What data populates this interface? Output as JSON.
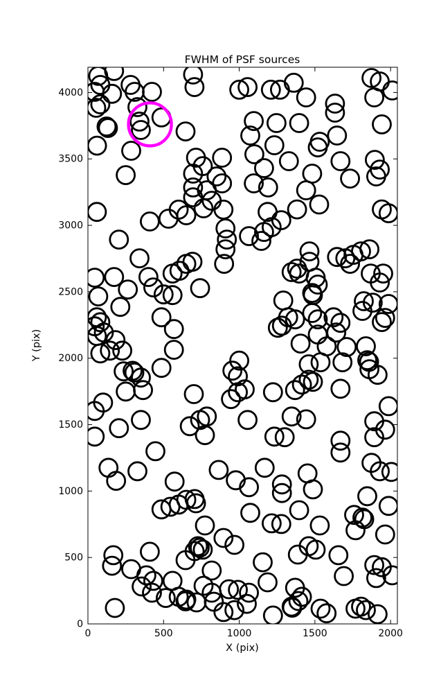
{
  "figure": {
    "background": "#ffffff"
  },
  "chart_data": {
    "type": "scatter",
    "title": "FWHM of PSF sources",
    "xlabel": "X (pix)",
    "ylabel": "Y (pix)",
    "xlim": [
      0,
      2045
    ],
    "ylim": [
      0,
      4190
    ],
    "xticks": [
      0,
      500,
      1000,
      1500,
      2000
    ],
    "yticks": [
      0,
      500,
      1000,
      1500,
      2000,
      2500,
      3000,
      3500,
      4000
    ],
    "grid": false,
    "legend": null,
    "marker": {
      "shape": "circle",
      "fill": "none",
      "edge_color": "#000000",
      "radius_px": 13,
      "stroke_px": 2.8
    },
    "highlight": {
      "x": 410,
      "y": 3760,
      "color": "#ff00ff",
      "radius_px": 31,
      "stroke_px": 4.4
    },
    "points": [
      [
        68,
        4125
      ],
      [
        173,
        4162
      ],
      [
        82,
        4057
      ],
      [
        45,
        4005
      ],
      [
        159,
        3990
      ],
      [
        82,
        3911
      ],
      [
        55,
        3885
      ],
      [
        282,
        4057
      ],
      [
        309,
        4005
      ],
      [
        423,
        4005
      ],
      [
        327,
        3890
      ],
      [
        341,
        3781
      ],
      [
        350,
        3718
      ],
      [
        486,
        3812
      ],
      [
        123,
        3744
      ],
      [
        132,
        3733
      ],
      [
        60,
        3600
      ],
      [
        286,
        3561
      ],
      [
        645,
        3707
      ],
      [
        704,
        4041
      ],
      [
        695,
        4135
      ],
      [
        1000,
        4021
      ],
      [
        250,
        3378
      ],
      [
        714,
        3509
      ],
      [
        886,
        3509
      ],
      [
        695,
        3389
      ],
      [
        759,
        3446
      ],
      [
        850,
        3368
      ],
      [
        695,
        3285
      ],
      [
        786,
        3264
      ],
      [
        886,
        3316
      ],
      [
        695,
        3211
      ],
      [
        818,
        3185
      ],
      [
        1055,
        4041
      ],
      [
        1209,
        4021
      ],
      [
        1269,
        4021
      ],
      [
        1360,
        4073
      ],
      [
        1442,
        3963
      ],
      [
        1874,
        4109
      ],
      [
        1929,
        4083
      ],
      [
        1892,
        3963
      ],
      [
        2011,
        4015
      ],
      [
        1633,
        3916
      ],
      [
        1633,
        3848
      ],
      [
        1096,
        3785
      ],
      [
        1246,
        3770
      ],
      [
        1396,
        3770
      ],
      [
        1073,
        3676
      ],
      [
        1232,
        3603
      ],
      [
        1532,
        3629
      ],
      [
        1519,
        3587
      ],
      [
        1646,
        3676
      ],
      [
        1942,
        3760
      ],
      [
        1100,
        3535
      ],
      [
        1328,
        3483
      ],
      [
        1669,
        3483
      ],
      [
        1164,
        3431
      ],
      [
        1896,
        3493
      ],
      [
        1929,
        3420
      ],
      [
        1905,
        3368
      ],
      [
        1482,
        3389
      ],
      [
        1732,
        3352
      ],
      [
        1096,
        3316
      ],
      [
        1191,
        3285
      ],
      [
        1442,
        3264
      ],
      [
        1528,
        3157
      ],
      [
        1382,
        3120
      ],
      [
        1942,
        3120
      ],
      [
        1987,
        3091
      ],
      [
        59,
        3101
      ],
      [
        409,
        3029
      ],
      [
        532,
        3050
      ],
      [
        650,
        3076
      ],
      [
        764,
        3128
      ],
      [
        896,
        3118
      ],
      [
        600,
        3118
      ],
      [
        205,
        2893
      ],
      [
        341,
        2752
      ],
      [
        909,
        2977
      ],
      [
        918,
        2893
      ],
      [
        909,
        2820
      ],
      [
        900,
        2710
      ],
      [
        691,
        2726
      ],
      [
        650,
        2710
      ],
      [
        605,
        2658
      ],
      [
        559,
        2637
      ],
      [
        173,
        2611
      ],
      [
        45,
        2606
      ],
      [
        400,
        2611
      ],
      [
        264,
        2517
      ],
      [
        432,
        2533
      ],
      [
        500,
        2480
      ],
      [
        559,
        2475
      ],
      [
        741,
        2527
      ],
      [
        68,
        2465
      ],
      [
        214,
        2386
      ],
      [
        59,
        2308
      ],
      [
        82,
        2271
      ],
      [
        45,
        2240
      ],
      [
        105,
        2193
      ],
      [
        59,
        2167
      ],
      [
        486,
        2308
      ],
      [
        568,
        2219
      ],
      [
        182,
        2136
      ],
      [
        568,
        2063
      ],
      [
        1187,
        3101
      ],
      [
        1278,
        3039
      ],
      [
        1164,
        2950
      ],
      [
        1214,
        2987
      ],
      [
        1064,
        2919
      ],
      [
        1146,
        2883
      ],
      [
        1464,
        2804
      ],
      [
        1464,
        2726
      ],
      [
        1382,
        2674
      ],
      [
        1396,
        2637
      ],
      [
        1346,
        2648
      ],
      [
        1505,
        2606
      ],
      [
        1519,
        2554
      ],
      [
        1482,
        2491
      ],
      [
        1646,
        2762
      ],
      [
        1701,
        2752
      ],
      [
        1755,
        2778
      ],
      [
        1805,
        2804
      ],
      [
        1860,
        2820
      ],
      [
        1732,
        2710
      ],
      [
        1869,
        2637
      ],
      [
        1951,
        2637
      ],
      [
        1929,
        2570
      ],
      [
        1291,
        2434
      ],
      [
        1487,
        2475
      ],
      [
        1823,
        2429
      ],
      [
        1882,
        2418
      ],
      [
        1987,
        2408
      ],
      [
        1814,
        2356
      ],
      [
        1964,
        2303
      ],
      [
        1942,
        2272
      ],
      [
        1482,
        2340
      ],
      [
        1323,
        2308
      ],
      [
        1369,
        2292
      ],
      [
        1282,
        2245
      ],
      [
        1255,
        2229
      ],
      [
        1519,
        2292
      ],
      [
        1623,
        2308
      ],
      [
        1669,
        2266
      ],
      [
        1519,
        2178
      ],
      [
        1641,
        2193
      ],
      [
        1405,
        2110
      ],
      [
        1837,
        2090
      ],
      [
        82,
        2036
      ],
      [
        145,
        2057
      ],
      [
        227,
        2057
      ],
      [
        236,
        1901
      ],
      [
        295,
        1905
      ],
      [
        307,
        1892
      ],
      [
        350,
        1854
      ],
      [
        486,
        1927
      ],
      [
        250,
        1749
      ],
      [
        364,
        1760
      ],
      [
        100,
        1666
      ],
      [
        45,
        1603
      ],
      [
        350,
        1535
      ],
      [
        205,
        1473
      ],
      [
        45,
        1410
      ],
      [
        700,
        1730
      ],
      [
        741,
        1535
      ],
      [
        786,
        1561
      ],
      [
        673,
        1488
      ],
      [
        773,
        1421
      ],
      [
        446,
        1300
      ],
      [
        136,
        1175
      ],
      [
        327,
        1149
      ],
      [
        186,
        1077
      ],
      [
        573,
        1071
      ],
      [
        864,
        1159
      ],
      [
        977,
        1081
      ],
      [
        1000,
        1982
      ],
      [
        955,
        1906
      ],
      [
        991,
        1864
      ],
      [
        945,
        1692
      ],
      [
        991,
        1744
      ],
      [
        1036,
        1765
      ],
      [
        1578,
        2089
      ],
      [
        1710,
        2084
      ],
      [
        1459,
        1954
      ],
      [
        1537,
        1969
      ],
      [
        1682,
        1969
      ],
      [
        1846,
        1985
      ],
      [
        1858,
        1973
      ],
      [
        1860,
        1917
      ],
      [
        1914,
        1875
      ],
      [
        1459,
        1838
      ],
      [
        1487,
        1822
      ],
      [
        1414,
        1801
      ],
      [
        1369,
        1760
      ],
      [
        1223,
        1744
      ],
      [
        1669,
        1770
      ],
      [
        1055,
        1535
      ],
      [
        1346,
        1561
      ],
      [
        1442,
        1540
      ],
      [
        1987,
        1639
      ],
      [
        1892,
        1525
      ],
      [
        1964,
        1462
      ],
      [
        1232,
        1410
      ],
      [
        1300,
        1405
      ],
      [
        1892,
        1405
      ],
      [
        1669,
        1379
      ],
      [
        1669,
        1290
      ],
      [
        1874,
        1212
      ],
      [
        1929,
        1149
      ],
      [
        1168,
        1175
      ],
      [
        1451,
        1133
      ],
      [
        2005,
        1144
      ],
      [
        486,
        862
      ],
      [
        545,
        882
      ],
      [
        600,
        898
      ],
      [
        650,
        934
      ],
      [
        705,
        940
      ],
      [
        714,
        908
      ],
      [
        773,
        741
      ],
      [
        896,
        647
      ],
      [
        968,
        595
      ],
      [
        727,
        585
      ],
      [
        739,
        573
      ],
      [
        759,
        559
      ],
      [
        705,
        548
      ],
      [
        409,
        543
      ],
      [
        168,
        517
      ],
      [
        159,
        438
      ],
      [
        286,
        412
      ],
      [
        645,
        480
      ],
      [
        818,
        402
      ],
      [
        386,
        366
      ],
      [
        432,
        324
      ],
      [
        355,
        282
      ],
      [
        423,
        235
      ],
      [
        559,
        324
      ],
      [
        600,
        204
      ],
      [
        650,
        183
      ],
      [
        764,
        287
      ],
      [
        818,
        235
      ],
      [
        932,
        261
      ],
      [
        991,
        256
      ],
      [
        178,
        120
      ],
      [
        896,
        89
      ],
      [
        968,
        104
      ],
      [
        514,
        195
      ],
      [
        645,
        170
      ],
      [
        718,
        162
      ],
      [
        832,
        167
      ],
      [
        1905,
        345
      ],
      [
        1064,
        1029
      ],
      [
        1282,
        1050
      ],
      [
        1282,
        985
      ],
      [
        1487,
        1013
      ],
      [
        1846,
        961
      ],
      [
        1987,
        888
      ],
      [
        1073,
        836
      ],
      [
        1214,
        757
      ],
      [
        1278,
        752
      ],
      [
        1396,
        856
      ],
      [
        1532,
        741
      ],
      [
        1814,
        800
      ],
      [
        1826,
        788
      ],
      [
        1768,
        705
      ],
      [
        1759,
        820
      ],
      [
        1964,
        673
      ],
      [
        1459,
        585
      ],
      [
        1505,
        559
      ],
      [
        1387,
        522
      ],
      [
        1655,
        517
      ],
      [
        1155,
        464
      ],
      [
        1892,
        443
      ],
      [
        1942,
        427
      ],
      [
        2011,
        366
      ],
      [
        1691,
        360
      ],
      [
        1187,
        313
      ],
      [
        1064,
        235
      ],
      [
        1050,
        151
      ],
      [
        1369,
        272
      ],
      [
        1414,
        204
      ],
      [
        1346,
        130
      ],
      [
        1391,
        172
      ],
      [
        1537,
        115
      ],
      [
        1805,
        130
      ],
      [
        1837,
        104
      ],
      [
        1768,
        115
      ],
      [
        1914,
        73
      ],
      [
        1223,
        63
      ],
      [
        1350,
        122
      ],
      [
        1577,
        80
      ]
    ]
  }
}
